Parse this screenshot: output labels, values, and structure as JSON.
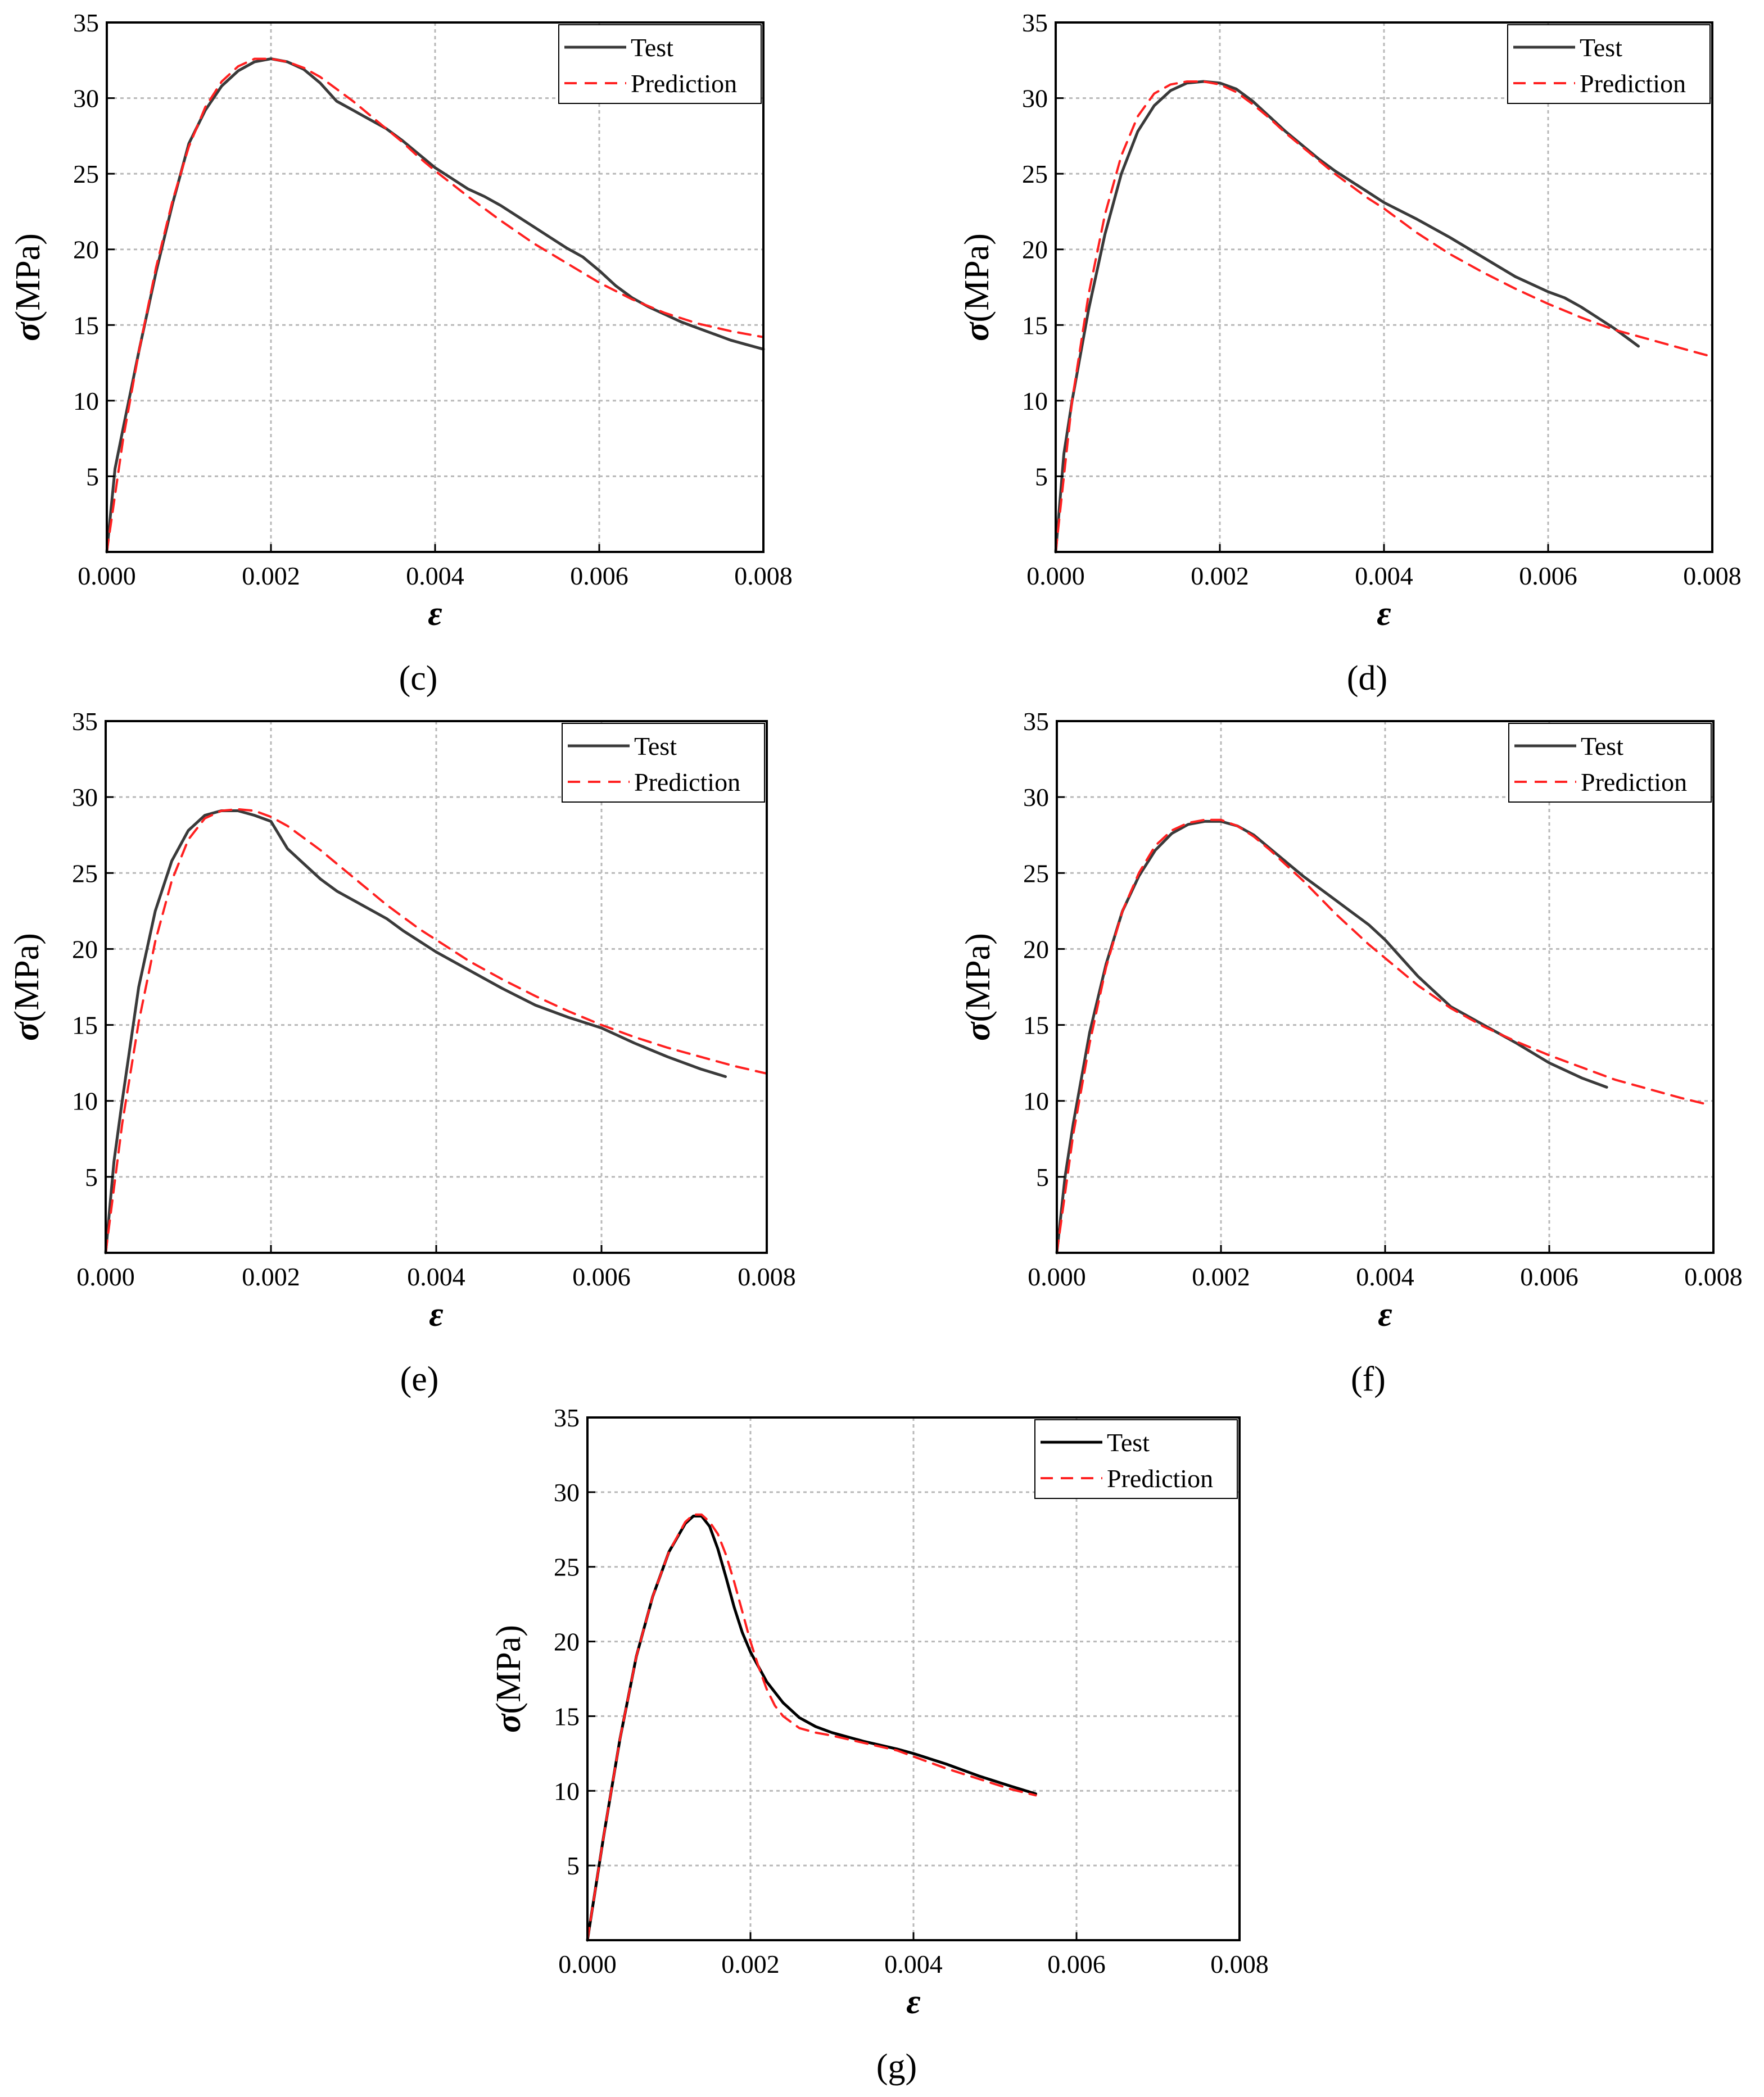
{
  "figure": {
    "legend_labels": [
      "Test",
      "Prediction"
    ],
    "colors": {
      "test": "#3a3a3a",
      "test_g": "#000000",
      "prediction": "#ff2020",
      "grid": "#b8b8b8",
      "axis": "#000000"
    }
  },
  "chart_data": [
    {
      "panel": "c",
      "type": "line",
      "panel_label": "(c)",
      "xlabel": "ε",
      "ylabel_symbol": "σ",
      "ylabel_unit": "(MPa)",
      "xlim": [
        0,
        0.008
      ],
      "ylim": [
        0,
        35
      ],
      "x_ticks": [
        0,
        0.002,
        0.004,
        0.006,
        0.008
      ],
      "x_tick_labels": [
        "0.000",
        "0.002",
        "0.004",
        "0.006",
        "0.008"
      ],
      "y_ticks": [
        5,
        10,
        15,
        20,
        25,
        30,
        35
      ],
      "y_tick_labels": [
        "5",
        "10",
        "15",
        "20",
        "25",
        "30",
        "35"
      ],
      "grid": true,
      "legend_position": "top-right",
      "series": [
        {
          "name": "Test",
          "x": [
            0,
            0.0001,
            0.0002,
            0.0004,
            0.0006,
            0.0008,
            0.001,
            0.0012,
            0.0014,
            0.0016,
            0.0018,
            0.002,
            0.0022,
            0.0024,
            0.0026,
            0.0028,
            0.003,
            0.0032,
            0.0034,
            0.0036,
            0.0038,
            0.004,
            0.0042,
            0.0044,
            0.0046,
            0.0048,
            0.005,
            0.0052,
            0.0054,
            0.0056,
            0.0058,
            0.006,
            0.0062,
            0.0064,
            0.0066,
            0.0068,
            0.007,
            0.0072,
            0.0074,
            0.0076,
            0.0078,
            0.008
          ],
          "y": [
            0,
            5.5,
            8.2,
            13.5,
            18.5,
            23,
            27,
            29.2,
            30.8,
            31.8,
            32.4,
            32.6,
            32.4,
            31.9,
            31,
            29.8,
            29.2,
            28.6,
            28,
            27.2,
            26.3,
            25.4,
            24.7,
            24,
            23.5,
            22.9,
            22.2,
            21.5,
            20.8,
            20.1,
            19.5,
            18.6,
            17.6,
            16.8,
            16.2,
            15.7,
            15.2,
            14.8,
            14.4,
            14,
            13.7,
            13.4
          ]
        },
        {
          "name": "Prediction",
          "x": [
            0,
            0.0002,
            0.0004,
            0.0006,
            0.0008,
            0.001,
            0.0012,
            0.0014,
            0.0016,
            0.0018,
            0.002,
            0.0022,
            0.0024,
            0.0026,
            0.0028,
            0.003,
            0.0032,
            0.0034,
            0.0036,
            0.0038,
            0.004,
            0.0044,
            0.0048,
            0.0052,
            0.0056,
            0.006,
            0.0064,
            0.0068,
            0.0072,
            0.0076,
            0.008
          ],
          "y": [
            0,
            7.5,
            13.5,
            18.8,
            23.2,
            26.8,
            29.4,
            31.1,
            32.1,
            32.6,
            32.6,
            32.4,
            32,
            31.4,
            30.6,
            29.8,
            28.9,
            28,
            27.1,
            26.1,
            25.2,
            23.5,
            21.9,
            20.4,
            19.1,
            17.8,
            16.7,
            15.8,
            15.1,
            14.6,
            14.2
          ]
        }
      ]
    },
    {
      "panel": "d",
      "type": "line",
      "panel_label": "(d)",
      "xlabel": "ε",
      "ylabel_symbol": "σ",
      "ylabel_unit": "(MPa)",
      "xlim": [
        0,
        0.008
      ],
      "ylim": [
        0,
        35
      ],
      "x_ticks": [
        0,
        0.002,
        0.004,
        0.006,
        0.008
      ],
      "x_tick_labels": [
        "0.000",
        "0.002",
        "0.004",
        "0.006",
        "0.008"
      ],
      "y_ticks": [
        5,
        10,
        15,
        20,
        25,
        30,
        35
      ],
      "y_tick_labels": [
        "5",
        "10",
        "15",
        "20",
        "25",
        "30",
        "35"
      ],
      "grid": true,
      "legend_position": "top-right",
      "series": [
        {
          "name": "Test",
          "x": [
            0,
            0.0001,
            0.0002,
            0.0004,
            0.0006,
            0.0008,
            0.001,
            0.0012,
            0.0014,
            0.0016,
            0.0018,
            0.002,
            0.0022,
            0.0024,
            0.0026,
            0.0028,
            0.003,
            0.0032,
            0.0034,
            0.0036,
            0.0038,
            0.004,
            0.0044,
            0.0048,
            0.0052,
            0.0056,
            0.006,
            0.0062,
            0.0064,
            0.0066,
            0.0068,
            0.007,
            0.0071
          ],
          "y": [
            0,
            6.5,
            10,
            16,
            21,
            25,
            27.8,
            29.5,
            30.5,
            31,
            31.1,
            31,
            30.6,
            29.8,
            28.8,
            27.8,
            26.9,
            26,
            25.2,
            24.5,
            23.8,
            23.1,
            22,
            20.8,
            19.5,
            18.2,
            17.2,
            16.8,
            16.2,
            15.5,
            14.8,
            14,
            13.6
          ]
        },
        {
          "name": "Prediction",
          "x": [
            0,
            0.0002,
            0.0004,
            0.0006,
            0.0008,
            0.001,
            0.0012,
            0.0014,
            0.0016,
            0.0018,
            0.002,
            0.0022,
            0.0024,
            0.0026,
            0.0028,
            0.003,
            0.0032,
            0.0034,
            0.0036,
            0.0038,
            0.004,
            0.0044,
            0.0048,
            0.0052,
            0.0056,
            0.006,
            0.0064,
            0.0068,
            0.0072,
            0.0076,
            0.008
          ],
          "y": [
            0,
            10,
            17,
            22.3,
            26.2,
            28.8,
            30.3,
            30.9,
            31.1,
            31.1,
            30.9,
            30.4,
            29.6,
            28.7,
            27.7,
            26.8,
            25.9,
            25,
            24.2,
            23.4,
            22.7,
            21.1,
            19.7,
            18.5,
            17.4,
            16.4,
            15.5,
            14.7,
            14.1,
            13.5,
            12.9
          ]
        }
      ]
    },
    {
      "panel": "e",
      "type": "line",
      "panel_label": "(e)",
      "xlabel": "ε",
      "ylabel_symbol": "σ",
      "ylabel_unit": "(MPa)",
      "xlim": [
        0,
        0.008
      ],
      "ylim": [
        0,
        35
      ],
      "x_ticks": [
        0,
        0.002,
        0.004,
        0.006,
        0.008
      ],
      "x_tick_labels": [
        "0.000",
        "0.002",
        "0.004",
        "0.006",
        "0.008"
      ],
      "y_ticks": [
        5,
        10,
        15,
        20,
        25,
        30,
        35
      ],
      "y_tick_labels": [
        "5",
        "10",
        "15",
        "20",
        "25",
        "30",
        "35"
      ],
      "grid": true,
      "legend_position": "top-right",
      "series": [
        {
          "name": "Test",
          "x": [
            0,
            0.0001,
            0.0002,
            0.0004,
            0.0006,
            0.0008,
            0.001,
            0.0012,
            0.0014,
            0.0016,
            0.0018,
            0.002,
            0.0021,
            0.0022,
            0.0024,
            0.0026,
            0.0028,
            0.003,
            0.0032,
            0.0034,
            0.0036,
            0.0038,
            0.004,
            0.0044,
            0.0048,
            0.0052,
            0.0056,
            0.006,
            0.0064,
            0.0068,
            0.0072,
            0.0075
          ],
          "y": [
            0,
            6,
            10,
            17.5,
            22.5,
            25.8,
            27.8,
            28.8,
            29.1,
            29.1,
            28.8,
            28.4,
            27.5,
            26.6,
            25.6,
            24.6,
            23.8,
            23.2,
            22.6,
            22,
            21.2,
            20.5,
            19.8,
            18.6,
            17.4,
            16.3,
            15.5,
            14.8,
            13.8,
            12.9,
            12.1,
            11.6
          ]
        },
        {
          "name": "Prediction",
          "x": [
            0,
            0.0002,
            0.0004,
            0.0006,
            0.0008,
            0.001,
            0.0012,
            0.0014,
            0.0016,
            0.0018,
            0.002,
            0.0022,
            0.0024,
            0.0026,
            0.0028,
            0.003,
            0.0032,
            0.0034,
            0.0036,
            0.0038,
            0.004,
            0.0044,
            0.0048,
            0.0052,
            0.0056,
            0.006,
            0.0064,
            0.0068,
            0.0072,
            0.0076,
            0.008
          ],
          "y": [
            0,
            8.5,
            15.2,
            20.5,
            24.5,
            27.2,
            28.6,
            29.1,
            29.2,
            29.1,
            28.7,
            28.1,
            27.3,
            26.5,
            25.6,
            24.7,
            23.8,
            22.9,
            22.1,
            21.3,
            20.6,
            19.2,
            18,
            16.9,
            15.9,
            15,
            14.2,
            13.5,
            12.9,
            12.3,
            11.8
          ]
        }
      ]
    },
    {
      "panel": "f",
      "type": "line",
      "panel_label": "(f)",
      "xlabel": "ε",
      "ylabel_symbol": "σ",
      "ylabel_unit": "(MPa)",
      "xlim": [
        0,
        0.008
      ],
      "ylim": [
        0,
        35
      ],
      "x_ticks": [
        0,
        0.002,
        0.004,
        0.006,
        0.008
      ],
      "x_tick_labels": [
        "0.000",
        "0.002",
        "0.004",
        "0.006",
        "0.008"
      ],
      "y_ticks": [
        5,
        10,
        15,
        20,
        25,
        30,
        35
      ],
      "y_tick_labels": [
        "5",
        "10",
        "15",
        "20",
        "25",
        "30",
        "35"
      ],
      "grid": true,
      "legend_position": "top-right",
      "series": [
        {
          "name": "Test",
          "x": [
            0,
            0.0001,
            0.0002,
            0.0004,
            0.0006,
            0.0008,
            0.001,
            0.0012,
            0.0014,
            0.0016,
            0.0018,
            0.002,
            0.0022,
            0.0024,
            0.0026,
            0.0028,
            0.003,
            0.0032,
            0.0034,
            0.0036,
            0.0038,
            0.004,
            0.0044,
            0.0048,
            0.0052,
            0.0056,
            0.006,
            0.0064,
            0.0067
          ],
          "y": [
            0,
            5,
            8.5,
            14.5,
            19,
            22.5,
            24.8,
            26.5,
            27.6,
            28.2,
            28.4,
            28.4,
            28.1,
            27.5,
            26.6,
            25.7,
            24.8,
            24,
            23.2,
            22.4,
            21.6,
            20.6,
            18.2,
            16.2,
            15,
            13.8,
            12.5,
            11.5,
            10.9
          ]
        },
        {
          "name": "Prediction",
          "x": [
            0,
            0.0002,
            0.0004,
            0.0006,
            0.0008,
            0.001,
            0.0012,
            0.0014,
            0.0016,
            0.0018,
            0.002,
            0.0022,
            0.0024,
            0.0026,
            0.0028,
            0.003,
            0.0032,
            0.0034,
            0.0036,
            0.0038,
            0.004,
            0.0044,
            0.0048,
            0.0052,
            0.0056,
            0.006,
            0.0064,
            0.0068,
            0.0072,
            0.0076,
            0.0079
          ],
          "y": [
            0,
            7.8,
            13.8,
            18.8,
            22.5,
            25,
            26.8,
            27.8,
            28.3,
            28.5,
            28.5,
            28.1,
            27.4,
            26.5,
            25.5,
            24.5,
            23.4,
            22.3,
            21.3,
            20.3,
            19.4,
            17.6,
            16.1,
            14.9,
            13.9,
            13,
            12.2,
            11.4,
            10.8,
            10.2,
            9.8
          ]
        }
      ]
    },
    {
      "panel": "g",
      "type": "line",
      "panel_label": "(g)",
      "xlabel": "ε",
      "ylabel_symbol": "σ",
      "ylabel_unit": "(MPa)",
      "xlim": [
        0,
        0.008
      ],
      "ylim": [
        0,
        35
      ],
      "x_ticks": [
        0,
        0.002,
        0.004,
        0.006,
        0.008
      ],
      "x_tick_labels": [
        "0.000",
        "0.002",
        "0.004",
        "0.006",
        "0.008"
      ],
      "y_ticks": [
        5,
        10,
        15,
        20,
        25,
        30,
        35
      ],
      "y_tick_labels": [
        "5",
        "10",
        "15",
        "20",
        "25",
        "30",
        "35"
      ],
      "grid": true,
      "legend_position": "top-right",
      "series": [
        {
          "name": "Test",
          "x": [
            0,
            0.0001,
            0.0002,
            0.0004,
            0.0006,
            0.0008,
            0.001,
            0.0012,
            0.0013,
            0.0014,
            0.0015,
            0.0016,
            0.0017,
            0.0018,
            0.0019,
            0.002,
            0.0022,
            0.0024,
            0.0026,
            0.0028,
            0.003,
            0.0034,
            0.0038,
            0.004,
            0.0044,
            0.0048,
            0.0052,
            0.0055
          ],
          "y": [
            0,
            3.5,
            7,
            13.5,
            19,
            23,
            26,
            27.9,
            28.4,
            28.4,
            27.7,
            26.2,
            24.3,
            22.3,
            20.6,
            19.3,
            17.3,
            15.9,
            14.9,
            14.3,
            13.9,
            13.3,
            12.8,
            12.5,
            11.8,
            11,
            10.3,
            9.8
          ]
        },
        {
          "name": "Prediction",
          "x": [
            0,
            0.0002,
            0.0004,
            0.0006,
            0.0008,
            0.001,
            0.0012,
            0.0013,
            0.0014,
            0.0015,
            0.0016,
            0.0017,
            0.0018,
            0.0019,
            0.002,
            0.0021,
            0.0022,
            0.0023,
            0.0024,
            0.0026,
            0.0028,
            0.003,
            0.0034,
            0.0038,
            0.004,
            0.0044,
            0.0048,
            0.0052,
            0.0055
          ],
          "y": [
            0,
            7,
            13.5,
            19,
            23,
            26,
            28,
            28.5,
            28.5,
            28,
            27.2,
            25.8,
            24,
            22,
            20,
            18.3,
            16.8,
            15.7,
            15,
            14.2,
            13.9,
            13.7,
            13.2,
            12.7,
            12.3,
            11.5,
            10.8,
            10.1,
            9.7
          ]
        }
      ]
    }
  ]
}
